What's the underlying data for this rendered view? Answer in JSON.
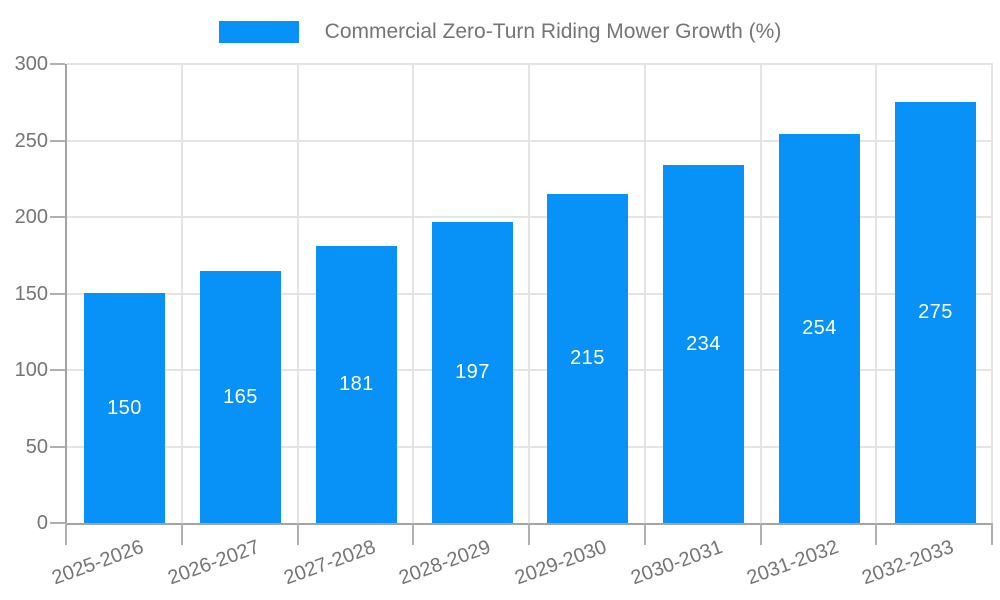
{
  "chart_data": {
    "type": "bar",
    "title": "Commercial Zero-Turn Riding Mower Growth (%)",
    "series": [
      {
        "name": "Commercial Zero-Turn Riding Mower Growth (%)",
        "values": [
          150,
          165,
          181,
          197,
          215,
          234,
          254,
          275
        ]
      }
    ],
    "categories": [
      "2025-2026",
      "2026-2027",
      "2027-2028",
      "2028-2029",
      "2029-2030",
      "2030-2031",
      "2031-2032",
      "2032-2033"
    ],
    "value_labels": [
      "150",
      "165",
      "181",
      "197",
      "215",
      "234",
      "254",
      "275"
    ],
    "xlabel": "",
    "ylabel": "",
    "ylim": [
      0,
      300
    ],
    "yticks": [
      0,
      50,
      100,
      150,
      200,
      250,
      300
    ],
    "grid": true,
    "legend_position": "top-center",
    "x_label_rotation_deg": -20,
    "colors": {
      "bar": "#0892f8",
      "value_label": "#ffffff",
      "axis_text": "#757575",
      "grid_line": "#e4e4e4",
      "axis_line": "#a4a4a4",
      "tick_mark": "#b0b0b0"
    }
  }
}
